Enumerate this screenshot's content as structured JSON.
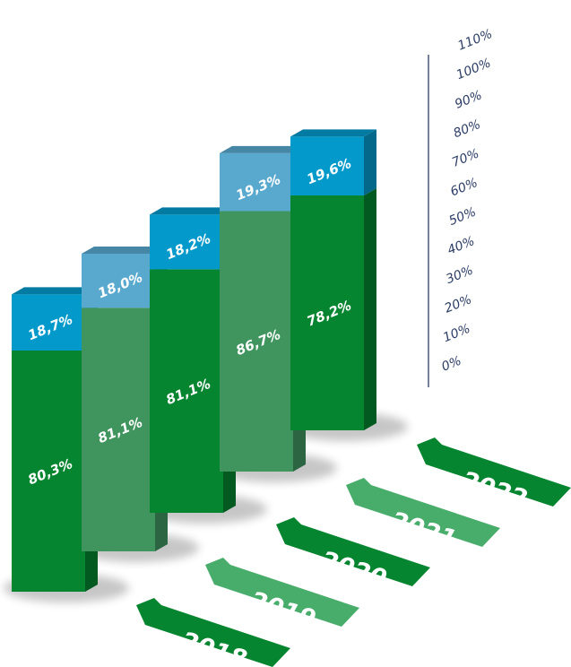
{
  "chart_data": {
    "type": "bar",
    "stacked": true,
    "style": "3d-isometric",
    "categories": [
      "2018",
      "2019",
      "2020",
      "2021",
      "2022"
    ],
    "series": [
      {
        "values": [
          80.3,
          81.1,
          81.1,
          86.7,
          78.2
        ],
        "labels": [
          "80,3%",
          "81,1%",
          "81,1%",
          "86,7%",
          "78,2%"
        ]
      },
      {
        "values": [
          18.7,
          18.0,
          18.2,
          19.3,
          19.6
        ],
        "labels": [
          "18,7%",
          "18,0%",
          "18,2%",
          "19,3%",
          "19,6%"
        ]
      }
    ],
    "yticks": [
      "0%",
      "10%",
      "20%",
      "30%",
      "40%",
      "50%",
      "60%",
      "70%",
      "80%",
      "90%",
      "100%",
      "110%"
    ],
    "ylim": [
      0,
      110
    ],
    "grid": false,
    "legend": "none"
  },
  "colors": {
    "bar_green": "#05852f",
    "bar_green_light": "#40955f",
    "bar_blue": "#0499cb",
    "bar_blue_light": "#59a9cf",
    "axis": "#2c3e66",
    "tag_dark": "#05852f",
    "tag_light": "#48ad6b"
  }
}
